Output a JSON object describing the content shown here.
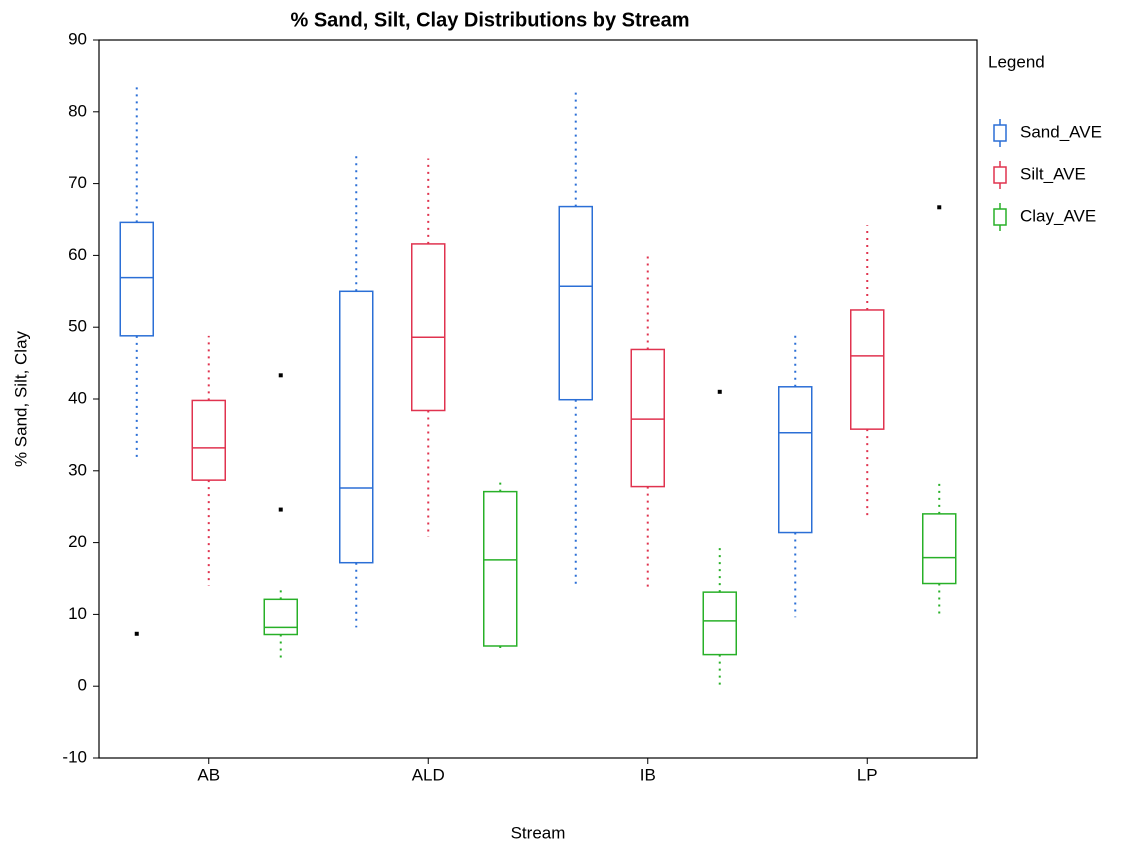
{
  "chart_data": {
    "type": "box",
    "title": "% Sand, Silt, Clay Distributions by Stream",
    "x_label": "Stream",
    "y_label": "% Sand, Silt, Clay",
    "legend_title": "Legend",
    "legend": "right",
    "categories": [
      "AB",
      "ALD",
      "IB",
      "LP"
    ],
    "ylim": [
      -10,
      90
    ],
    "yticks": [
      -10,
      0,
      10,
      20,
      30,
      40,
      50,
      60,
      70,
      80,
      90
    ],
    "series": [
      {
        "name": "Sand_AVE",
        "color": "#2b6fd6",
        "boxes": [
          {
            "min": 31.3,
            "q1": 48.8,
            "median": 56.9,
            "q3": 64.6,
            "max": 83.6,
            "outliers": [
              7.3
            ]
          },
          {
            "min": 8.2,
            "q1": 17.2,
            "median": 27.6,
            "q3": 55,
            "max": 74
          },
          {
            "min": 13.8,
            "q1": 39.9,
            "median": 55.7,
            "q3": 66.8,
            "max": 83
          },
          {
            "min": 9.6,
            "q1": 21.4,
            "median": 35.3,
            "q3": 41.7,
            "max": 49.5
          }
        ]
      },
      {
        "name": "Silt_AVE",
        "color": "#e0334f",
        "boxes": [
          {
            "min": 14,
            "q1": 28.7,
            "median": 33.2,
            "q3": 39.8,
            "max": 48.8
          },
          {
            "min": 20.8,
            "q1": 38.4,
            "median": 48.6,
            "q3": 61.6,
            "max": 73.5
          },
          {
            "min": 13.3,
            "q1": 27.8,
            "median": 37.2,
            "q3": 46.9,
            "max": 60.3
          },
          {
            "min": 23.8,
            "q1": 35.8,
            "median": 46,
            "q3": 52.4,
            "max": 64.2
          }
        ]
      },
      {
        "name": "Clay_AVE",
        "color": "#28b028",
        "boxes": [
          {
            "min": 4,
            "q1": 7.2,
            "median": 8.2,
            "q3": 12.1,
            "max": 14,
            "outliers": [
              43.3,
              24.6
            ]
          },
          {
            "min": 5.2,
            "q1": 5.6,
            "median": 17.6,
            "q3": 27.1,
            "max": 29
          },
          {
            "min": 0,
            "q1": 4.4,
            "median": 9.1,
            "q3": 13.1,
            "max": 19.4,
            "outliers": [
              41
            ]
          },
          {
            "min": 9.6,
            "q1": 14.3,
            "median": 17.9,
            "q3": 24,
            "max": 28.7,
            "outliers": [
              66.7
            ]
          }
        ]
      }
    ]
  }
}
